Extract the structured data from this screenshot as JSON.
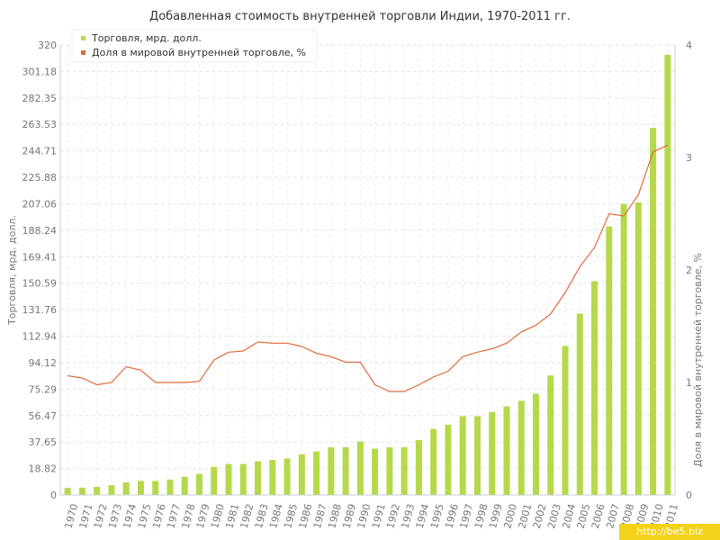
{
  "chart_data": {
    "type": "bar+line",
    "title": "Добавленная стоимость внутренней торговли Индии, 1970-2011 гг.",
    "ylabel": "Торговля, мрд. долл.",
    "y2label": "Доля в мировой внутренней торговле, %",
    "ylim": [
      0,
      320
    ],
    "y2lim": [
      0,
      4
    ],
    "y_ticks": [
      "0",
      "18.82",
      "37.65",
      "56.47",
      "75.29",
      "94.12",
      "112.94",
      "131.76",
      "150.59",
      "169.41",
      "188.24",
      "207.06",
      "225.88",
      "244.71",
      "263.53",
      "282.35",
      "301.18",
      "320"
    ],
    "y2_ticks": [
      "0",
      "1",
      "2",
      "3",
      "4"
    ],
    "legend_position": "top-left",
    "grid": true,
    "categories": [
      "1970",
      "1971",
      "1972",
      "1973",
      "1974",
      "1975",
      "1976",
      "1977",
      "1978",
      "1979",
      "1980",
      "1981",
      "1982",
      "1983",
      "1984",
      "1985",
      "1986",
      "1987",
      "1988",
      "1989",
      "1990",
      "1991",
      "1992",
      "1993",
      "1994",
      "1995",
      "1996",
      "1997",
      "1998",
      "1999",
      "2000",
      "2001",
      "2002",
      "2003",
      "2004",
      "2005",
      "2006",
      "2007",
      "2008",
      "2009",
      "2010",
      "2011"
    ],
    "series": [
      {
        "name": "Торговля, мрд. долл.",
        "type": "bar",
        "axis": "left",
        "color": "#b5d94a",
        "values": [
          5.0,
          5.2,
          5.8,
          7.0,
          9.0,
          10.0,
          10.0,
          11.0,
          13.0,
          15.0,
          20.0,
          22.0,
          22.0,
          24.0,
          25.0,
          26.0,
          29.0,
          31.0,
          34.0,
          34.0,
          38.0,
          33.0,
          34.0,
          34.0,
          39.0,
          47.0,
          50.0,
          56.0,
          56.0,
          59.0,
          63.0,
          67.0,
          72.0,
          85.0,
          106.0,
          129.0,
          152.0,
          191.0,
          207.0,
          208.0,
          261.0,
          313.0
        ]
      },
      {
        "name": "Доля в мировой внутренней торговле, %",
        "type": "line",
        "axis": "right",
        "color": "#e06a3c",
        "values": [
          1.06,
          1.04,
          0.98,
          1.0,
          1.14,
          1.11,
          1.0,
          1.0,
          1.0,
          1.01,
          1.2,
          1.27,
          1.28,
          1.36,
          1.35,
          1.35,
          1.32,
          1.26,
          1.23,
          1.18,
          1.18,
          0.98,
          0.92,
          0.92,
          0.98,
          1.05,
          1.1,
          1.23,
          1.27,
          1.3,
          1.35,
          1.45,
          1.51,
          1.61,
          1.8,
          2.03,
          2.2,
          2.5,
          2.48,
          2.67,
          3.05,
          3.11
        ]
      }
    ]
  },
  "watermark": "http://be5.biz"
}
